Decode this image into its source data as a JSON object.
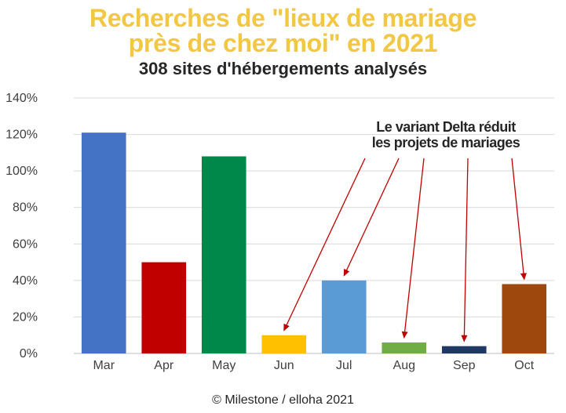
{
  "chart_data": {
    "type": "bar",
    "title": [
      "Recherches de \"lieux de mariage",
      "près de chez moi\" en 2021"
    ],
    "subtitle": "308 sites d'hébergements analysés",
    "categories": [
      "Mar",
      "Apr",
      "May",
      "Jun",
      "Jul",
      "Aug",
      "Sep",
      "Oct"
    ],
    "values": [
      121,
      50,
      108,
      10,
      40,
      6,
      4,
      38
    ],
    "value_unit": "%",
    "bar_colors": [
      "#4472c4",
      "#c00000",
      "#00884b",
      "#ffc000",
      "#5b9bd5",
      "#70ad47",
      "#203864",
      "#9e480e"
    ],
    "ylim": [
      0,
      140
    ],
    "y_ticks": [
      "0%",
      "20%",
      "40%",
      "60%",
      "80%",
      "100%",
      "120%",
      "140%"
    ],
    "grid": true,
    "legend": "none",
    "annotation": {
      "lines": [
        "Le variant Delta réduit",
        "les projets de mariages"
      ],
      "arrow_color": "#c00000",
      "targets": [
        "Jun",
        "Jul",
        "Aug",
        "Sep",
        "Oct"
      ]
    }
  },
  "footer": "© Milestone / elloha 2021"
}
